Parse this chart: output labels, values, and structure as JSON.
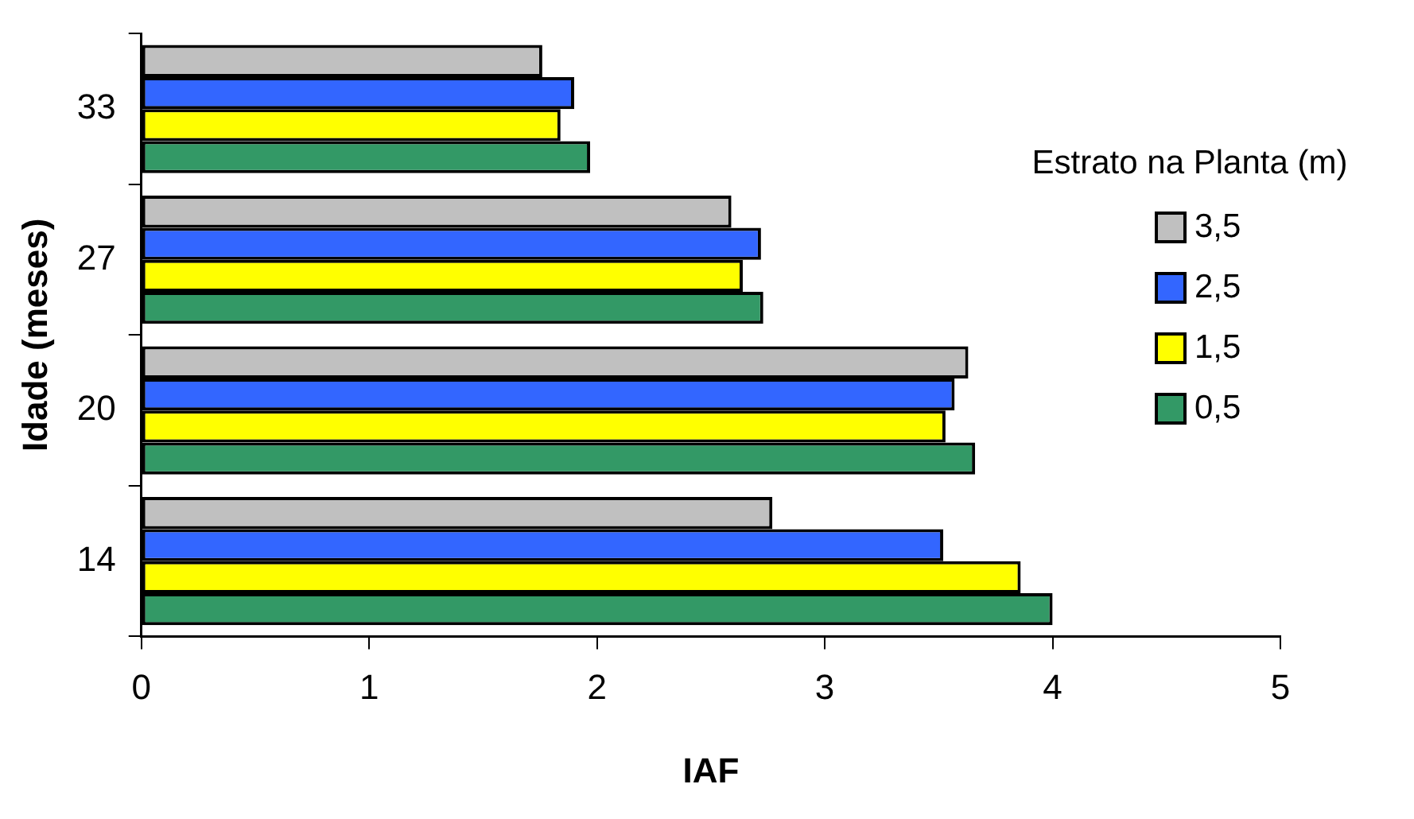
{
  "chart_data": {
    "type": "bar",
    "orientation": "horizontal",
    "xlabel": "IAF",
    "ylabel": "Idade (meses)",
    "legend_title": "Estrato na Planta (m)",
    "legend": "right",
    "grid": false,
    "categories": [
      "33",
      "27",
      "20",
      "14"
    ],
    "series": [
      {
        "name": "3,5",
        "color": "#c0c0c0",
        "values": [
          1.76,
          2.59,
          3.63,
          2.77
        ]
      },
      {
        "name": "2,5",
        "color": "#3366ff",
        "values": [
          1.9,
          2.72,
          3.57,
          3.52
        ]
      },
      {
        "name": "1,5",
        "color": "#ffff00",
        "values": [
          1.84,
          2.64,
          3.53,
          3.86
        ]
      },
      {
        "name": "0,5",
        "color": "#339966",
        "values": [
          1.97,
          2.73,
          3.66,
          4.0
        ]
      }
    ],
    "xlim": [
      0,
      5
    ],
    "xticks": [
      0,
      1,
      2,
      3,
      4,
      5
    ]
  }
}
